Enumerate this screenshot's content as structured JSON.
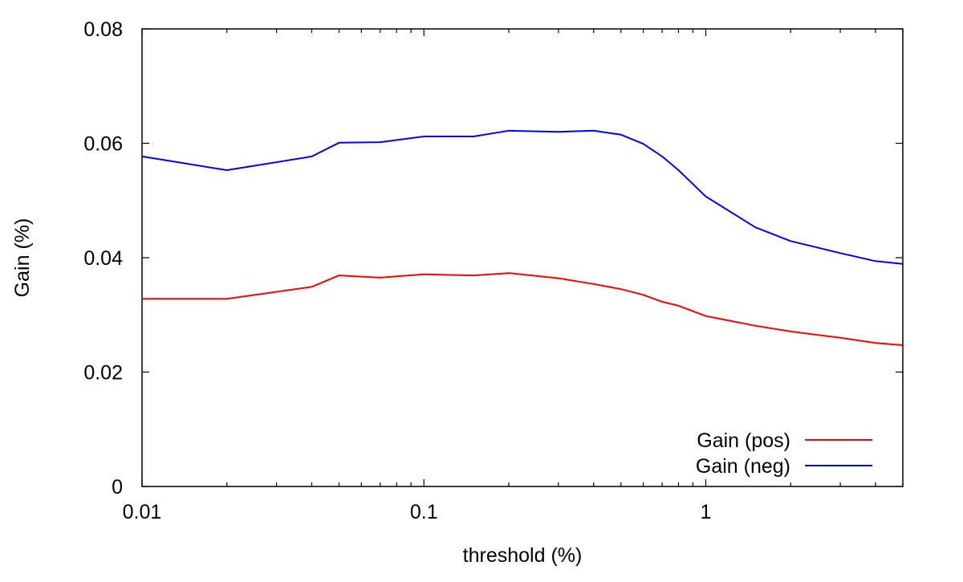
{
  "chart_data": {
    "type": "line",
    "title": "",
    "xlabel": "threshold (%)",
    "ylabel": "Gain (%)",
    "xscale": "log",
    "xlim": [
      0.01,
      5
    ],
    "ylim": [
      0,
      0.08
    ],
    "grid": false,
    "legend_position": "bottom-right",
    "x_ticks": [
      0.01,
      0.1,
      1
    ],
    "x_tick_labels": [
      "0.01",
      "0.1",
      "1"
    ],
    "y_ticks": [
      0,
      0.02,
      0.04,
      0.06,
      0.08
    ],
    "y_tick_labels": [
      "0",
      "0.02",
      "0.04",
      "0.06",
      "0.08"
    ],
    "x": [
      0.01,
      0.02,
      0.04,
      0.05,
      0.07,
      0.1,
      0.15,
      0.2,
      0.3,
      0.4,
      0.5,
      0.6,
      0.7,
      0.8,
      1,
      1.5,
      2,
      3,
      4,
      5
    ],
    "series": [
      {
        "name": "Gain (pos)",
        "color": "#ff0000",
        "values": [
          0.0328,
          0.0328,
          0.0349,
          0.0369,
          0.0365,
          0.0371,
          0.0369,
          0.0373,
          0.0364,
          0.0354,
          0.0345,
          0.0335,
          0.0323,
          0.0316,
          0.0298,
          0.0281,
          0.0271,
          0.026,
          0.0251,
          0.0247
        ]
      },
      {
        "name": "Gain (neg)",
        "color": "#0000ff",
        "values": [
          0.0577,
          0.0553,
          0.0577,
          0.0601,
          0.0602,
          0.0612,
          0.0612,
          0.0622,
          0.062,
          0.0622,
          0.0615,
          0.0599,
          0.0577,
          0.0553,
          0.0507,
          0.0453,
          0.0429,
          0.0408,
          0.0394,
          0.0389
        ]
      }
    ]
  }
}
